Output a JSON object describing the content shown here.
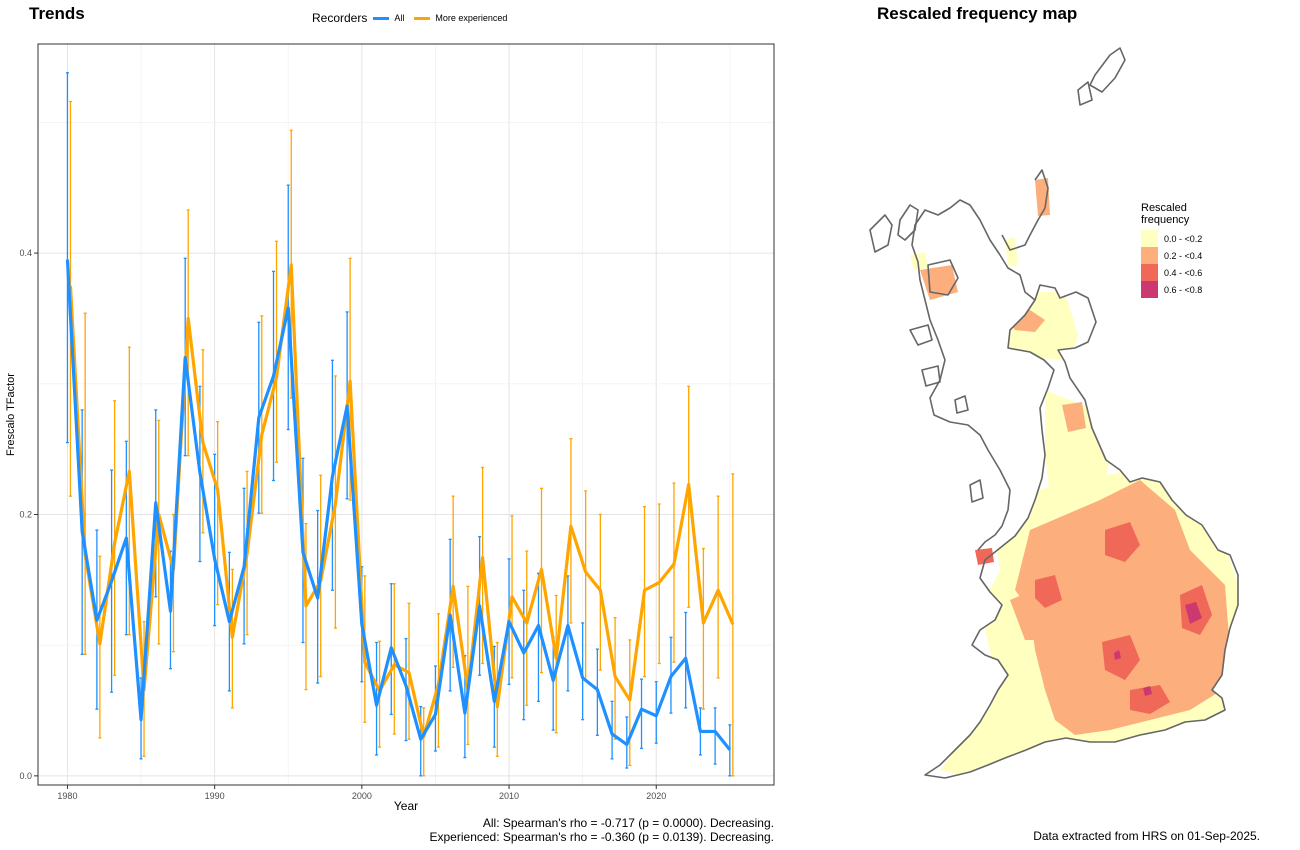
{
  "trends": {
    "title": "Trends",
    "legend": {
      "title": "Recorders",
      "items": [
        {
          "label": "All",
          "color": "#1e90ff"
        },
        {
          "label": "More experienced",
          "color": "#ffa500"
        }
      ]
    }
  },
  "chart_data": {
    "type": "line",
    "title": "Trends",
    "xlabel": "Year",
    "ylabel": "Frescalo TFactor",
    "xlim": [
      1978,
      2028
    ],
    "ylim": [
      -0.007,
      0.56
    ],
    "x_ticks": [
      1980,
      1990,
      2000,
      2010,
      2020
    ],
    "y_ticks": [
      "0.0",
      "0.2",
      "0.4"
    ],
    "y_tick_values": [
      0.0,
      0.2,
      0.4
    ],
    "grid": true,
    "legend_position": "top",
    "x": [
      1980,
      1981,
      1982,
      1983,
      1984,
      1985,
      1986,
      1987,
      1988,
      1989,
      1990,
      1991,
      1992,
      1993,
      1994,
      1995,
      1996,
      1997,
      1998,
      1999,
      2000,
      2001,
      2002,
      2003,
      2004,
      2005,
      2006,
      2007,
      2008,
      2009,
      2010,
      2011,
      2012,
      2013,
      2014,
      2015,
      2016,
      2017,
      2018,
      2019,
      2020,
      2021,
      2022,
      2023,
      2024,
      2025
    ],
    "series": [
      {
        "name": "All",
        "color": "#1e90ff",
        "values": [
          0.395,
          0.187,
          0.119,
          0.149,
          0.182,
          0.043,
          0.209,
          0.126,
          0.32,
          0.232,
          0.166,
          0.118,
          0.16,
          0.274,
          0.306,
          0.358,
          0.171,
          0.136,
          0.229,
          0.283,
          0.116,
          0.054,
          0.098,
          0.069,
          0.028,
          0.047,
          0.123,
          0.048,
          0.13,
          0.057,
          0.118,
          0.094,
          0.115,
          0.073,
          0.115,
          0.075,
          0.066,
          0.032,
          0.024,
          0.051,
          0.046,
          0.076,
          0.09,
          0.034,
          0.034,
          0.02
        ],
        "lower": [
          0.255,
          0.093,
          0.051,
          0.064,
          0.108,
          0.013,
          0.137,
          0.082,
          0.245,
          0.164,
          0.115,
          0.065,
          0.101,
          0.201,
          0.226,
          0.265,
          0.102,
          0.071,
          0.142,
          0.212,
          0.072,
          0.016,
          0.047,
          0.027,
          0.0,
          0.019,
          0.065,
          0.014,
          0.077,
          0.022,
          0.07,
          0.043,
          0.057,
          0.035,
          0.065,
          0.043,
          0.031,
          0.013,
          0.006,
          0.021,
          0.025,
          0.048,
          0.052,
          0.016,
          0.009,
          0.0
        ],
        "upper": [
          0.538,
          0.28,
          0.188,
          0.234,
          0.256,
          0.075,
          0.28,
          0.172,
          0.396,
          0.298,
          0.246,
          0.171,
          0.22,
          0.347,
          0.386,
          0.452,
          0.243,
          0.203,
          0.318,
          0.355,
          0.16,
          0.102,
          0.147,
          0.105,
          0.053,
          0.084,
          0.181,
          0.092,
          0.183,
          0.099,
          0.166,
          0.142,
          0.155,
          0.106,
          0.153,
          0.117,
          0.097,
          0.057,
          0.045,
          0.074,
          0.072,
          0.106,
          0.125,
          0.052,
          0.052,
          0.039
        ]
      },
      {
        "name": "More experienced",
        "color": "#ffa500",
        "values": [
          0.375,
          0.169,
          0.101,
          0.178,
          0.233,
          0.066,
          0.2,
          0.158,
          0.35,
          0.255,
          0.219,
          0.106,
          0.17,
          0.261,
          0.305,
          0.391,
          0.13,
          0.149,
          0.208,
          0.302,
          0.087,
          0.065,
          0.085,
          0.079,
          0.03,
          0.07,
          0.145,
          0.066,
          0.167,
          0.053,
          0.137,
          0.117,
          0.158,
          0.09,
          0.191,
          0.156,
          0.142,
          0.076,
          0.058,
          0.142,
          0.148,
          0.162,
          0.223,
          0.117,
          0.142,
          0.116
        ],
        "lower": [
          0.214,
          0.093,
          0.029,
          0.077,
          0.108,
          0.015,
          0.101,
          0.095,
          0.245,
          0.186,
          0.131,
          0.052,
          0.108,
          0.201,
          0.24,
          0.289,
          0.066,
          0.076,
          0.113,
          0.211,
          0.041,
          0.022,
          0.032,
          0.028,
          0.0,
          0.022,
          0.083,
          0.024,
          0.086,
          0.015,
          0.075,
          0.054,
          0.079,
          0.033,
          0.117,
          0.073,
          0.081,
          0.028,
          0.008,
          0.076,
          0.086,
          0.087,
          0.129,
          0.051,
          0.075,
          0.0
        ],
        "upper": [
          0.516,
          0.354,
          0.168,
          0.287,
          0.328,
          0.118,
          0.272,
          0.2,
          0.433,
          0.326,
          0.271,
          0.158,
          0.233,
          0.352,
          0.409,
          0.494,
          0.193,
          0.23,
          0.306,
          0.396,
          0.153,
          0.103,
          0.147,
          0.132,
          0.052,
          0.124,
          0.214,
          0.145,
          0.236,
          0.102,
          0.199,
          0.172,
          0.22,
          0.138,
          0.258,
          0.218,
          0.2,
          0.121,
          0.104,
          0.206,
          0.208,
          0.224,
          0.298,
          0.174,
          0.214,
          0.231
        ]
      }
    ]
  },
  "stats": {
    "line1": "All: Spearman's rho = -0.717 (p = 0.0000). Decreasing.",
    "line2": "Experienced: Spearman's rho = -0.360 (p = 0.0139). Decreasing."
  },
  "map": {
    "title": "Rescaled frequency map",
    "legend_title_1": "Rescaled",
    "legend_title_2": "frequency",
    "classes": [
      {
        "label": "0.0 - <0.2",
        "color": "#ffffc0"
      },
      {
        "label": "0.2 - <0.4",
        "color": "#fcaf7c"
      },
      {
        "label": "0.4 - <0.6",
        "color": "#f06858"
      },
      {
        "label": "0.6 - <0.8",
        "color": "#cc3870"
      }
    ],
    "outline_color": "#666666"
  },
  "footer": "Data extracted from HRS on 01-Sep-2025."
}
